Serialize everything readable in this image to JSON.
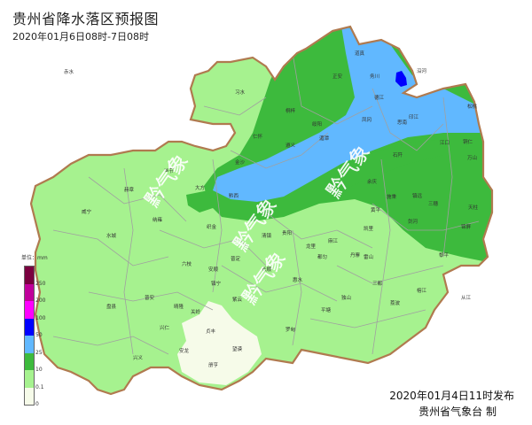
{
  "header": {
    "title": "贵州省降水落区预报图",
    "subtitle": "2020年01月6日08时-7日08时"
  },
  "footer": {
    "issued": "2020年01月4日11时发布",
    "issuer": "贵州省气象台 制"
  },
  "watermark": "黔气象",
  "legend": {
    "unit": "单位：mm",
    "bins": [
      {
        "label": "250",
        "color": "#7a0040"
      },
      {
        "label": "200",
        "color": "#c0009b"
      },
      {
        "label": "100",
        "color": "#ff00ff"
      },
      {
        "label": "50",
        "color": "#0000fe"
      },
      {
        "label": "25",
        "color": "#61b8ff"
      },
      {
        "label": "10",
        "color": "#3dba3d"
      },
      {
        "label": "0.1",
        "color": "#a6f28f"
      },
      {
        "label": "0",
        "color": "#f6fbe9"
      }
    ]
  },
  "colors": {
    "boundary": "#b07a4f",
    "county": "#a0a0a0",
    "pale": "#f6fbe9",
    "light_green": "#a6f28f",
    "green": "#3dba3d",
    "blue": "#61b8ff",
    "dark_blue": "#0000fe"
  },
  "cities": [
    {
      "name": "赤水"
    },
    {
      "name": "习水"
    },
    {
      "name": "桐梓"
    },
    {
      "name": "绥阳"
    },
    {
      "name": "正安"
    },
    {
      "name": "道真"
    },
    {
      "name": "务川"
    },
    {
      "name": "沿河"
    },
    {
      "name": "德江"
    },
    {
      "name": "印江"
    },
    {
      "name": "思南"
    },
    {
      "name": "松桃"
    },
    {
      "name": "仁怀"
    },
    {
      "name": "遵义"
    },
    {
      "name": "湄潭"
    },
    {
      "name": "凤冈"
    },
    {
      "name": "金沙"
    },
    {
      "name": "石阡"
    },
    {
      "name": "江口"
    },
    {
      "name": "铜仁"
    },
    {
      "name": "万山"
    },
    {
      "name": "大方"
    },
    {
      "name": "黔西"
    },
    {
      "name": "毕节"
    },
    {
      "name": "威宁"
    },
    {
      "name": "赫章"
    },
    {
      "name": "纳雍"
    },
    {
      "name": "织金"
    },
    {
      "name": "水城"
    },
    {
      "name": "清镇"
    },
    {
      "name": "贵阳"
    },
    {
      "name": "龙里"
    },
    {
      "name": "余庆"
    },
    {
      "name": "施秉"
    },
    {
      "name": "镇远"
    },
    {
      "name": "三穗"
    },
    {
      "name": "天柱"
    },
    {
      "name": "黄平"
    },
    {
      "name": "凯里"
    },
    {
      "name": "剑河"
    },
    {
      "name": "锦屏"
    },
    {
      "name": "麻江"
    },
    {
      "name": "丹寨"
    },
    {
      "name": "雷山"
    },
    {
      "name": "榕江"
    },
    {
      "name": "从江"
    },
    {
      "name": "黎平"
    },
    {
      "name": "都匀"
    },
    {
      "name": "三都"
    },
    {
      "name": "独山"
    },
    {
      "name": "荔波"
    },
    {
      "name": "平塘"
    },
    {
      "name": "罗甸"
    },
    {
      "name": "惠水"
    },
    {
      "name": "长顺"
    },
    {
      "name": "紫云"
    },
    {
      "name": "安顺"
    },
    {
      "name": "镇宁"
    },
    {
      "name": "关岭"
    },
    {
      "name": "六枝"
    },
    {
      "name": "普安"
    },
    {
      "name": "晴隆"
    },
    {
      "name": "盘县"
    },
    {
      "name": "兴仁"
    },
    {
      "name": "兴义"
    },
    {
      "name": "安龙"
    },
    {
      "name": "贞丰"
    },
    {
      "name": "册亨"
    },
    {
      "name": "望谟"
    },
    {
      "name": "普定"
    }
  ]
}
